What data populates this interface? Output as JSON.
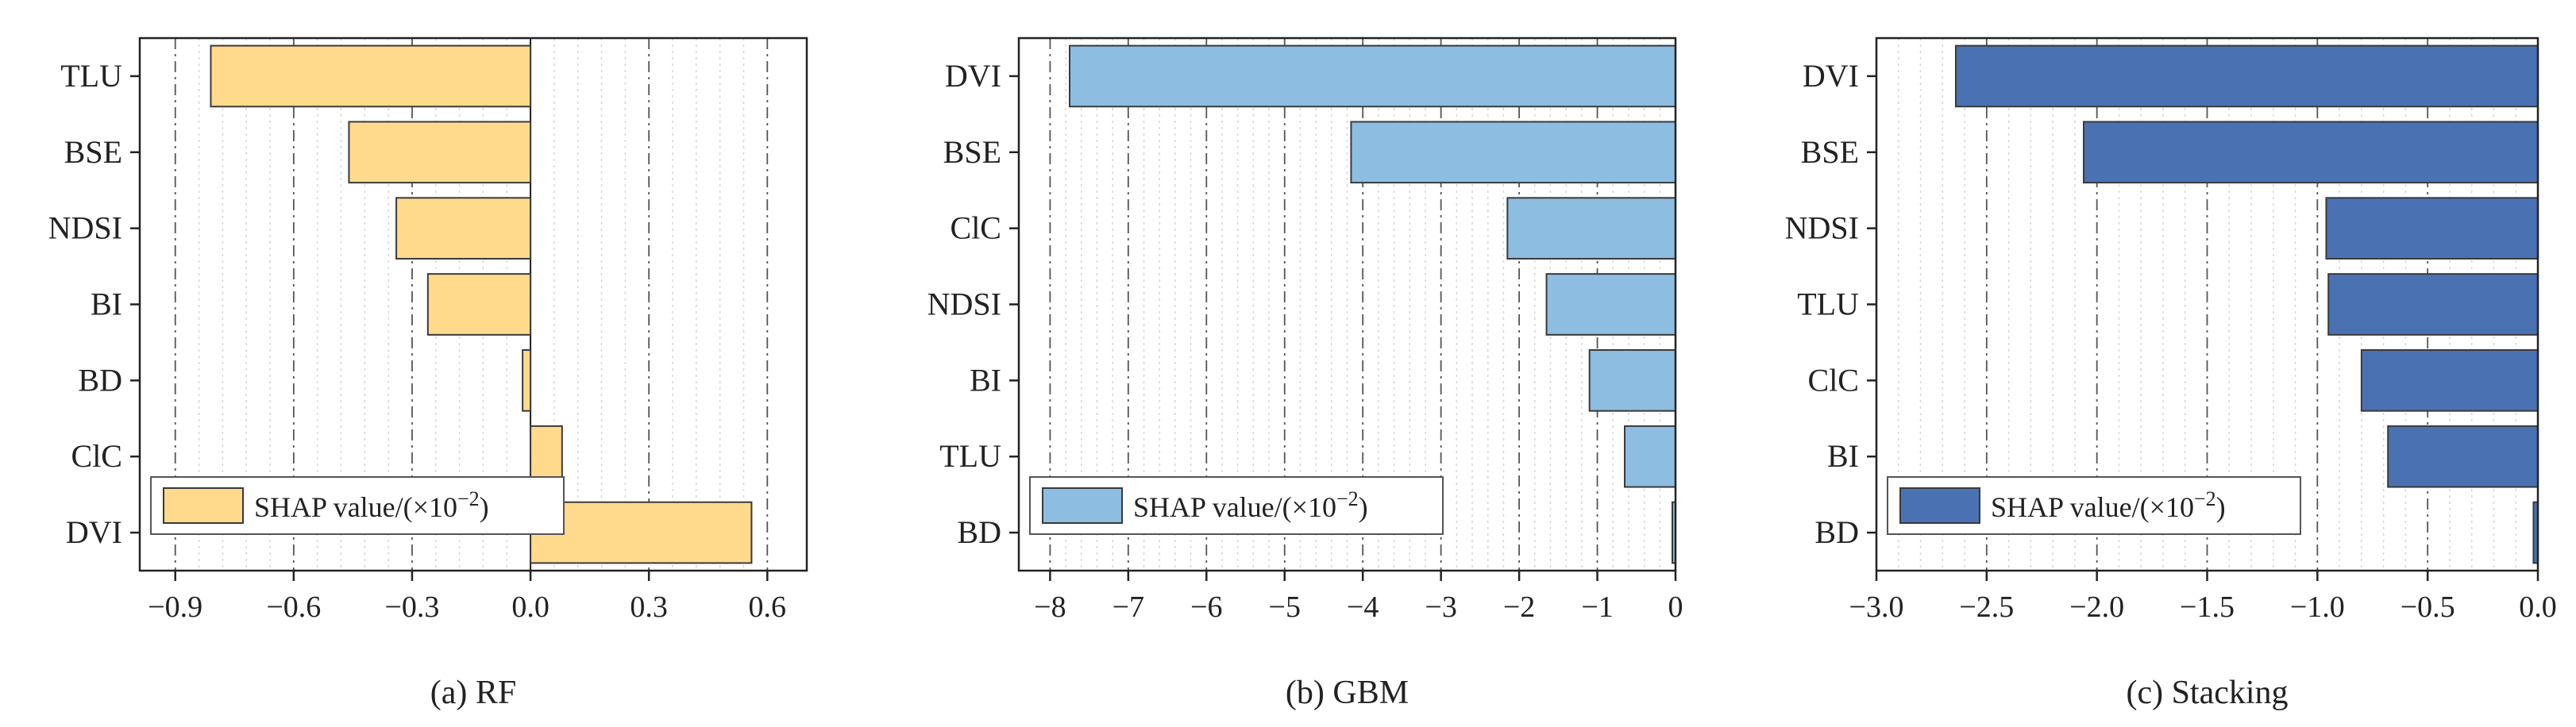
{
  "legend_label": "SHAP value/(×10",
  "legend_sup": "−2",
  "legend_close": ")",
  "chart_data": [
    {
      "type": "bar",
      "orientation": "horizontal",
      "title": "(a) RF",
      "xlabel": "",
      "ylabel": "",
      "categories": [
        "TLU",
        "BSE",
        "NDSI",
        "BI",
        "BD",
        "ClC",
        "DVI"
      ],
      "values": [
        -0.81,
        -0.46,
        -0.34,
        -0.26,
        -0.02,
        0.08,
        0.56
      ],
      "xlim": [
        -0.99,
        0.7
      ],
      "ticks": [
        -0.9,
        -0.6,
        -0.3,
        0.0,
        0.3,
        0.6
      ],
      "tick_labels": [
        "−0.9",
        "−0.6",
        "−0.3",
        "0.0",
        "0.3",
        "0.6"
      ],
      "bar_color": "#FFDA8C",
      "series_name": "SHAP value/(×10−2)",
      "legend_position": "bottom-left"
    },
    {
      "type": "bar",
      "orientation": "horizontal",
      "title": "(b) GBM",
      "xlabel": "",
      "ylabel": "",
      "categories": [
        "DVI",
        "BSE",
        "ClC",
        "NDSI",
        "BI",
        "TLU",
        "BD"
      ],
      "values": [
        -7.75,
        -4.15,
        -2.15,
        -1.65,
        -1.1,
        -0.65,
        0.0
      ],
      "xlim": [
        -8.4,
        0.0
      ],
      "ticks": [
        -8,
        -7,
        -6,
        -5,
        -4,
        -3,
        -2,
        -1,
        0
      ],
      "tick_labels": [
        "−8",
        "−7",
        "−6",
        "−5",
        "−4",
        "−3",
        "−2",
        "−1",
        "0"
      ],
      "bar_color": "#8DBEE2",
      "series_name": "SHAP value/(×10−2)",
      "legend_position": "bottom-left"
    },
    {
      "type": "bar",
      "orientation": "horizontal",
      "title": "(c) Stacking",
      "xlabel": "",
      "ylabel": "",
      "categories": [
        "DVI",
        "BSE",
        "NDSI",
        "TLU",
        "ClC",
        "BI",
        "BD"
      ],
      "values": [
        -2.64,
        -2.06,
        -0.96,
        -0.95,
        -0.8,
        -0.68,
        -0.02
      ],
      "xlim": [
        -3.0,
        0.0
      ],
      "ticks": [
        -3.0,
        -2.5,
        -2.0,
        -1.5,
        -1.0,
        -0.5,
        0.0
      ],
      "tick_labels": [
        "−3.0",
        "−2.5",
        "−2.0",
        "−1.5",
        "−1.0",
        "−0.5",
        "0.0"
      ],
      "bar_color": "#4A72B3",
      "series_name": "SHAP value/(×10−2)",
      "legend_position": "bottom-left"
    }
  ]
}
